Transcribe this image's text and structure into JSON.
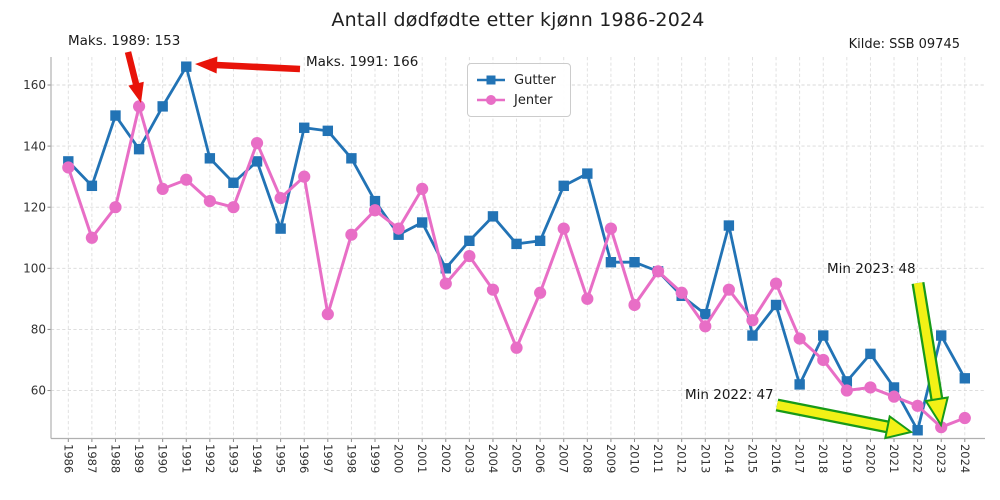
{
  "title": "Antall dødfødte etter kjønn 1986-2024",
  "source": "Kilde: SSB 09745",
  "legend": {
    "items": [
      {
        "label": "Gutter",
        "color": "#2273b5",
        "marker": "square"
      },
      {
        "label": "Jenter",
        "color": "#e86ec6",
        "marker": "circle"
      }
    ]
  },
  "annotations": {
    "max1989": {
      "text": "Maks. 1989: 153",
      "arrow_color": "#e81309"
    },
    "max1991": {
      "text": "Maks. 1991: 166",
      "arrow_color": "#e81309"
    },
    "min2023": {
      "text": "Min 2023: 48",
      "arrow_color": "#f2f116"
    },
    "min2022": {
      "text": "Min 2022: 47",
      "arrow_color": "#f2f116"
    }
  },
  "chart_data": {
    "type": "line",
    "title": "Antall dødfødte etter kjønn 1986-2024",
    "categories": [
      1986,
      1987,
      1988,
      1989,
      1990,
      1991,
      1992,
      1993,
      1994,
      1995,
      1996,
      1997,
      1998,
      1999,
      2000,
      2001,
      2002,
      2003,
      2004,
      2005,
      2006,
      2007,
      2008,
      2009,
      2010,
      2011,
      2012,
      2013,
      2014,
      2015,
      2016,
      2017,
      2018,
      2019,
      2020,
      2021,
      2022,
      2023,
      2024
    ],
    "series": [
      {
        "name": "Gutter",
        "color": "#2273b5",
        "marker": "square",
        "values": [
          135,
          127,
          150,
          139,
          153,
          166,
          136,
          128,
          135,
          113,
          146,
          145,
          136,
          122,
          111,
          115,
          100,
          109,
          117,
          108,
          109,
          127,
          131,
          102,
          102,
          99,
          91,
          85,
          114,
          78,
          88,
          62,
          78,
          63,
          72,
          61,
          47,
          78,
          64
        ]
      },
      {
        "name": "Jenter",
        "color": "#e86ec6",
        "marker": "circle",
        "values": [
          133,
          110,
          120,
          153,
          126,
          129,
          122,
          120,
          141,
          123,
          130,
          85,
          111,
          119,
          113,
          126,
          95,
          104,
          93,
          74,
          92,
          113,
          90,
          113,
          88,
          99,
          92,
          81,
          93,
          83,
          95,
          77,
          70,
          60,
          61,
          58,
          55,
          48,
          51
        ]
      }
    ],
    "yticks": [
      60,
      80,
      100,
      120,
      140,
      160
    ],
    "ylim": [
      44.5,
      168.8
    ],
    "grid": true,
    "legend_position": "upper center",
    "xlabel": "",
    "ylabel": ""
  }
}
